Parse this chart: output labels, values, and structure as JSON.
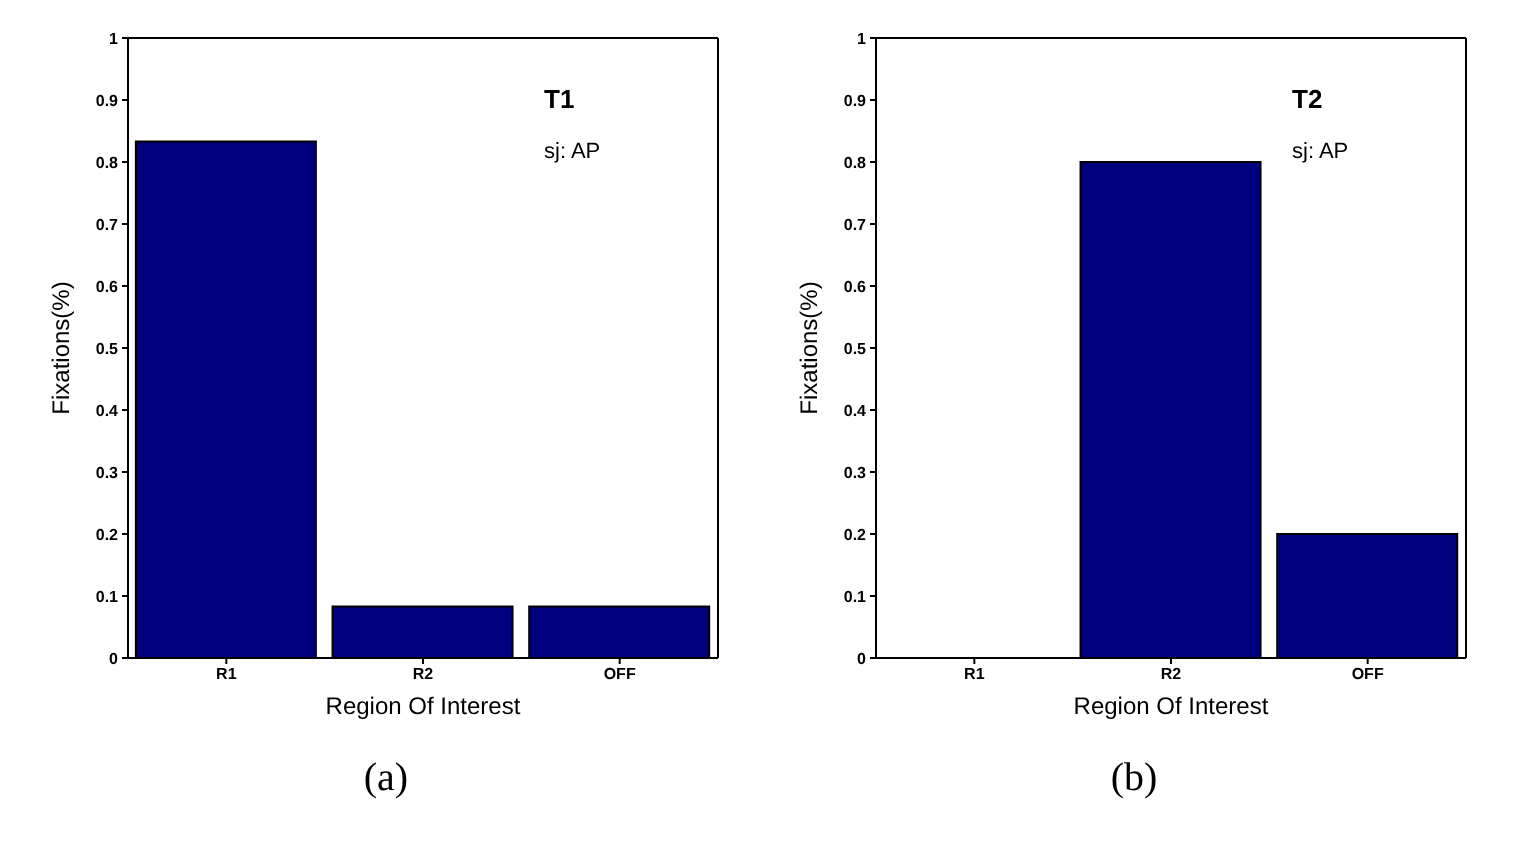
{
  "chart_data": [
    {
      "type": "bar",
      "xlabel": "Region Of Interest",
      "ylabel": "Fixations(%)",
      "categories": [
        "R1",
        "R2",
        "OFF"
      ],
      "values": [
        0.833,
        0.083,
        0.083
      ],
      "color": "#00007f",
      "ylim": [
        0,
        1
      ],
      "yticks": [
        0,
        0.1,
        0.2,
        0.3,
        0.4,
        0.5,
        0.6,
        0.7,
        0.8,
        0.9,
        1
      ],
      "grid": false,
      "legend": false,
      "annotations": [
        "T1",
        "sj: AP",
        "(a)"
      ]
    },
    {
      "type": "bar",
      "xlabel": "Region Of Interest",
      "ylabel": "Fixations(%)",
      "categories": [
        "R1",
        "R2",
        "OFF"
      ],
      "values": [
        0,
        0.8,
        0.2
      ],
      "color": "#00007f",
      "ylim": [
        0,
        1
      ],
      "yticks": [
        0,
        0.1,
        0.2,
        0.3,
        0.4,
        0.5,
        0.6,
        0.7,
        0.8,
        0.9,
        1
      ],
      "grid": false,
      "legend": false,
      "annotations": [
        "T2",
        "sj: AP",
        "(b)"
      ]
    }
  ]
}
